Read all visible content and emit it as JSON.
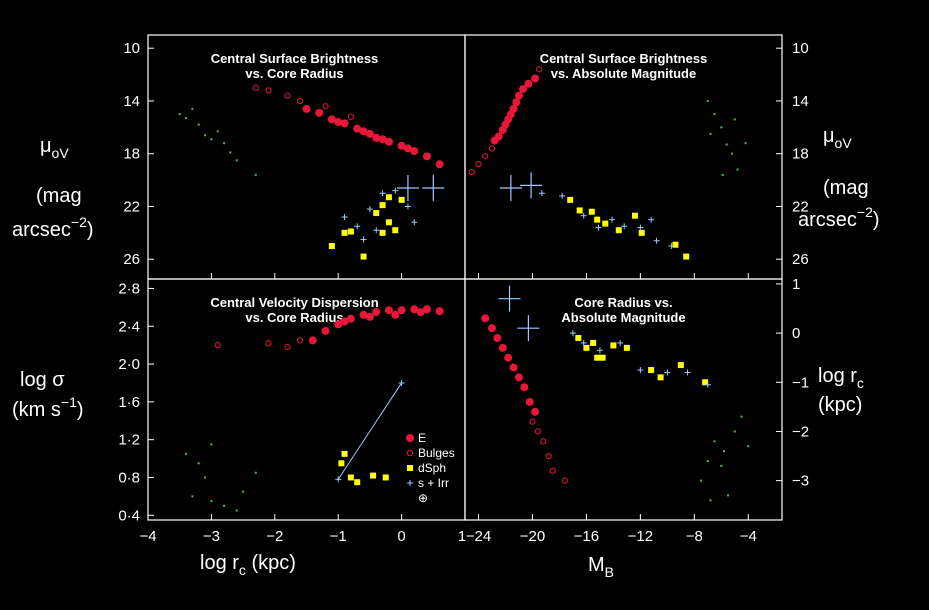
{
  "colors": {
    "background": "#000000",
    "axes": "#ffffff",
    "elliptical": "#e8173a",
    "bulges": "#e8173a",
    "dsph": "#ffff00",
    "spiral_irr": "#9ec8ff",
    "dwarf_spheroidal_faint": "#3fbf5a"
  },
  "axis_text": {
    "mu_label": "μ",
    "mu_sub": "oV",
    "mag_label": "(mag",
    "arcsec_label": "arcsec",
    "arcsec_exp": "−2",
    "arcsec_close": ")",
    "log_sigma": "log σ",
    "km_label": "(km s",
    "km_exp": "−1",
    "km_close": ")",
    "log_rc_right": "log r",
    "rc_sub": "c",
    "kpc_right": "(kpc)",
    "xlabel_left": "log r",
    "xlabel_left_sub": "c",
    "xlabel_left_unit": " (kpc)",
    "xlabel_right": "M",
    "xlabel_right_sub": "B"
  },
  "legend": {
    "items": [
      {
        "label": "E",
        "marker": "filled-circle"
      },
      {
        "label": "Bulges",
        "marker": "open-circle"
      },
      {
        "label": "dSph",
        "marker": "filled-square"
      },
      {
        "label": "s + Irr",
        "marker": "cross"
      },
      {
        "label": "⊕",
        "marker": "none"
      }
    ]
  },
  "chart_data": [
    {
      "type": "scatter",
      "panel": "top-left",
      "title_lines": [
        "Central Surface Brightness",
        "vs. Core Radius"
      ],
      "xlim": [
        -4,
        1
      ],
      "ylim": [
        27.5,
        9
      ],
      "xticks": [
        -4,
        -3,
        -2,
        -1,
        0
      ],
      "yticks": [
        10,
        14,
        18,
        22,
        26
      ],
      "series": [
        {
          "class": "E",
          "points": [
            [
              -1.5,
              14.6
            ],
            [
              -1.3,
              14.9
            ],
            [
              -1.1,
              15.4
            ],
            [
              -0.9,
              15.7
            ],
            [
              -0.7,
              16.1
            ],
            [
              -0.5,
              16.5
            ],
            [
              -0.4,
              16.8
            ],
            [
              -0.2,
              17.1
            ],
            [
              0.0,
              17.4
            ],
            [
              0.2,
              17.8
            ],
            [
              0.4,
              18.2
            ],
            [
              0.6,
              18.8
            ],
            [
              -1.0,
              15.6
            ],
            [
              -0.6,
              16.3
            ],
            [
              -0.3,
              16.9
            ],
            [
              0.1,
              17.6
            ]
          ]
        },
        {
          "class": "Bulges",
          "points": [
            [
              -2.1,
              13.2
            ],
            [
              -1.8,
              13.6
            ],
            [
              -1.6,
              14.0
            ],
            [
              -1.2,
              14.4
            ],
            [
              -0.8,
              15.2
            ],
            [
              -2.3,
              13.0
            ]
          ]
        },
        {
          "class": "dSph",
          "points": [
            [
              -1.1,
              25.0
            ],
            [
              -0.9,
              24.0
            ],
            [
              -0.8,
              23.9
            ],
            [
              -0.6,
              25.8
            ],
            [
              -0.4,
              22.5
            ],
            [
              -0.3,
              21.9
            ],
            [
              -0.2,
              21.3
            ],
            [
              -0.2,
              23.2
            ],
            [
              -0.1,
              23.8
            ],
            [
              0.0,
              21.5
            ],
            [
              -0.3,
              24.0
            ]
          ]
        },
        {
          "class": "s + Irr",
          "points": [
            [
              -0.9,
              22.8
            ],
            [
              -0.7,
              23.5
            ],
            [
              -0.6,
              24.5
            ],
            [
              -0.5,
              22.2
            ],
            [
              -0.3,
              21.0
            ],
            [
              -0.1,
              20.8
            ],
            [
              0.1,
              22.0
            ],
            [
              0.2,
              23.2
            ],
            [
              -0.4,
              23.8
            ]
          ]
        },
        {
          "class": "⊕",
          "points": [
            [
              0.1,
              20.6
            ],
            [
              0.5,
              20.6
            ]
          ]
        },
        {
          "class": "faint",
          "points": [
            [
              -3.5,
              15.0
            ],
            [
              -3.3,
              14.6
            ],
            [
              -3.2,
              15.8
            ],
            [
              -3.1,
              16.6
            ],
            [
              -2.9,
              16.3
            ],
            [
              -2.8,
              17.2
            ],
            [
              -2.7,
              17.9
            ],
            [
              -3.4,
              15.3
            ],
            [
              -2.6,
              18.5
            ],
            [
              -2.3,
              19.6
            ],
            [
              -3.0,
              16.9
            ]
          ]
        }
      ]
    },
    {
      "type": "scatter",
      "panel": "top-right",
      "title_lines": [
        "Central Surface Brightness",
        "vs. Absolute Magnitude"
      ],
      "xlim": [
        -25,
        -1.5
      ],
      "ylim": [
        27.5,
        9
      ],
      "xticks": [
        -24,
        -20,
        -16,
        -12,
        -8,
        -4
      ],
      "yticks": [
        10,
        14,
        18,
        22,
        26
      ],
      "series": [
        {
          "class": "E",
          "points": [
            [
              -22.8,
              17.0
            ],
            [
              -22.5,
              16.7
            ],
            [
              -22.2,
              16.2
            ],
            [
              -22.0,
              15.8
            ],
            [
              -21.8,
              15.4
            ],
            [
              -21.6,
              15.0
            ],
            [
              -21.4,
              14.6
            ],
            [
              -21.2,
              14.1
            ],
            [
              -21.0,
              13.6
            ],
            [
              -20.7,
              13.1
            ],
            [
              -20.3,
              12.7
            ],
            [
              -19.8,
              12.3
            ]
          ]
        },
        {
          "class": "Bulges",
          "points": [
            [
              -24.5,
              19.4
            ],
            [
              -24.0,
              18.8
            ],
            [
              -23.5,
              18.2
            ],
            [
              -23.0,
              17.6
            ],
            [
              -19.5,
              11.6
            ]
          ]
        },
        {
          "class": "dSph",
          "points": [
            [
              -17.2,
              21.5
            ],
            [
              -16.5,
              22.3
            ],
            [
              -15.6,
              22.4
            ],
            [
              -14.6,
              23.3
            ],
            [
              -13.6,
              23.8
            ],
            [
              -12.4,
              22.7
            ],
            [
              -11.9,
              24.0
            ],
            [
              -9.4,
              24.9
            ],
            [
              -8.6,
              25.8
            ],
            [
              -15.2,
              23.0
            ]
          ]
        },
        {
          "class": "s + Irr",
          "points": [
            [
              -19.3,
              21.0
            ],
            [
              -17.8,
              21.2
            ],
            [
              -16.2,
              22.7
            ],
            [
              -15.1,
              23.6
            ],
            [
              -14.1,
              23.0
            ],
            [
              -13.2,
              23.5
            ],
            [
              -12.0,
              23.6
            ],
            [
              -10.8,
              24.6
            ],
            [
              -9.7,
              25.0
            ],
            [
              -11.2,
              23.0
            ]
          ]
        },
        {
          "class": "⊕",
          "points": [
            [
              -21.6,
              20.6
            ],
            [
              -20.1,
              20.4
            ]
          ]
        },
        {
          "class": "faint",
          "points": [
            [
              -7.0,
              14.0
            ],
            [
              -6.5,
              15.0
            ],
            [
              -6.0,
              16.0
            ],
            [
              -5.6,
              17.3
            ],
            [
              -5.2,
              18.0
            ],
            [
              -4.8,
              19.2
            ],
            [
              -6.8,
              16.5
            ],
            [
              -5.9,
              19.6
            ],
            [
              -4.2,
              17.2
            ],
            [
              -5.0,
              15.4
            ]
          ]
        }
      ]
    },
    {
      "type": "scatter",
      "panel": "bottom-left",
      "title_lines": [
        "Central Velocity Dispersion",
        "vs. Core Radius"
      ],
      "xlim": [
        -4,
        1
      ],
      "ylim": [
        0.35,
        2.9
      ],
      "xticks": [
        -4,
        -3,
        -2,
        -1,
        0
      ],
      "yticks": [
        "0·4",
        "0·8",
        "1·2",
        "1·6",
        "2·0",
        "2·4",
        "2·8"
      ],
      "yticks_values": [
        0.4,
        0.8,
        1.2,
        1.6,
        2.0,
        2.4,
        2.8
      ],
      "series": [
        {
          "class": "E",
          "points": [
            [
              -1.4,
              2.25
            ],
            [
              -1.2,
              2.35
            ],
            [
              -1.0,
              2.42
            ],
            [
              -0.8,
              2.48
            ],
            [
              -0.6,
              2.52
            ],
            [
              -0.4,
              2.55
            ],
            [
              -0.2,
              2.57
            ],
            [
              0.0,
              2.57
            ],
            [
              0.2,
              2.58
            ],
            [
              0.4,
              2.58
            ],
            [
              0.6,
              2.56
            ],
            [
              -0.9,
              2.45
            ],
            [
              -0.5,
              2.5
            ],
            [
              -0.1,
              2.52
            ],
            [
              0.3,
              2.55
            ]
          ]
        },
        {
          "class": "Bulges",
          "points": [
            [
              -2.9,
              2.2
            ],
            [
              -2.1,
              2.22
            ],
            [
              -1.8,
              2.18
            ],
            [
              -1.6,
              2.25
            ]
          ]
        },
        {
          "class": "dSph",
          "points": [
            [
              -0.95,
              0.95
            ],
            [
              -0.9,
              1.05
            ],
            [
              -0.8,
              0.8
            ],
            [
              -0.7,
              0.75
            ],
            [
              -0.45,
              0.82
            ],
            [
              -0.25,
              0.8
            ]
          ]
        },
        {
          "class": "s + Irr",
          "points": [
            [
              -1.0,
              0.78
            ],
            [
              0.0,
              1.8
            ]
          ]
        },
        {
          "class": "faint",
          "points": [
            [
              -3.4,
              1.05
            ],
            [
              -3.2,
              0.95
            ],
            [
              -3.1,
              0.8
            ],
            [
              -3.0,
              0.55
            ],
            [
              -2.8,
              0.5
            ],
            [
              -3.3,
              0.6
            ],
            [
              -2.6,
              0.45
            ],
            [
              -2.3,
              0.85
            ],
            [
              -3.0,
              1.15
            ],
            [
              -2.5,
              0.65
            ]
          ]
        }
      ]
    },
    {
      "type": "scatter",
      "panel": "bottom-right",
      "title_lines": [
        "Core Radius vs.",
        "Absolute Magnitude"
      ],
      "xlim": [
        -25,
        -1.5
      ],
      "ylim": [
        -3.8,
        1.1
      ],
      "xticks": [
        -24,
        -20,
        -16,
        -12,
        -8,
        -4
      ],
      "yticks": [
        1,
        0,
        -1,
        -2,
        -3
      ],
      "series": [
        {
          "class": "E",
          "points": [
            [
              -23.5,
              0.3
            ],
            [
              -23.0,
              0.1
            ],
            [
              -22.6,
              -0.1
            ],
            [
              -22.2,
              -0.3
            ],
            [
              -21.8,
              -0.5
            ],
            [
              -21.4,
              -0.7
            ],
            [
              -21.0,
              -0.9
            ],
            [
              -20.6,
              -1.1
            ],
            [
              -20.2,
              -1.4
            ],
            [
              -19.8,
              -1.6
            ]
          ]
        },
        {
          "class": "Bulges",
          "points": [
            [
              -20.0,
              -1.8
            ],
            [
              -19.6,
              -2.0
            ],
            [
              -19.2,
              -2.2
            ],
            [
              -18.8,
              -2.5
            ],
            [
              -18.5,
              -2.8
            ],
            [
              -17.6,
              -3.0
            ]
          ]
        },
        {
          "class": "dSph",
          "points": [
            [
              -16.6,
              -0.1
            ],
            [
              -16.0,
              -0.3
            ],
            [
              -15.5,
              -0.2
            ],
            [
              -14.8,
              -0.5
            ],
            [
              -14.0,
              -0.25
            ],
            [
              -13.0,
              -0.3
            ],
            [
              -11.2,
              -0.75
            ],
            [
              -10.5,
              -0.9
            ],
            [
              -9.0,
              -0.65
            ],
            [
              -7.2,
              -1.0
            ],
            [
              -15.2,
              -0.5
            ]
          ]
        },
        {
          "class": "s + Irr",
          "points": [
            [
              -17.0,
              0.0
            ],
            [
              -16.2,
              -0.2
            ],
            [
              -15.0,
              -0.35
            ],
            [
              -13.5,
              -0.2
            ],
            [
              -12.0,
              -0.75
            ],
            [
              -10.0,
              -0.8
            ],
            [
              -8.5,
              -0.8
            ],
            [
              -7.0,
              -1.05
            ]
          ]
        },
        {
          "class": "⊕",
          "points": [
            [
              -21.7,
              0.7
            ],
            [
              -20.3,
              0.1
            ]
          ]
        },
        {
          "class": "faint",
          "points": [
            [
              -7.5,
              -3.0
            ],
            [
              -7.0,
              -2.6
            ],
            [
              -6.5,
              -2.2
            ],
            [
              -6.0,
              -2.7
            ],
            [
              -5.5,
              -3.3
            ],
            [
              -5.0,
              -2.0
            ],
            [
              -4.5,
              -1.7
            ],
            [
              -6.8,
              -3.4
            ],
            [
              -4.0,
              -2.3
            ],
            [
              -5.8,
              -2.4
            ]
          ]
        }
      ]
    }
  ]
}
